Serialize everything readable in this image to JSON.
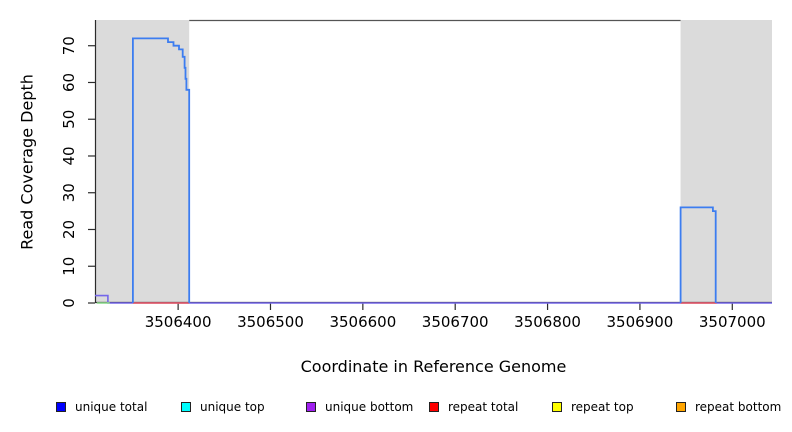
{
  "page": {
    "background": "#FFFFFF"
  },
  "chart_data": {
    "type": "line",
    "title": "",
    "xlabel": "Coordinate in Reference Genome",
    "ylabel": "Read Coverage Depth",
    "xlim": [
      3506310,
      3507043
    ],
    "ylim": [
      0,
      77
    ],
    "x_ticks": [
      3506400,
      3506500,
      3506600,
      3506700,
      3506800,
      3506900,
      3507000
    ],
    "y_ticks": [
      0,
      10,
      20,
      30,
      40,
      50,
      60,
      70
    ],
    "grid": false,
    "legend_position": "bottom",
    "colors": {
      "region_gray": "#DBDBDB",
      "axis": "#2b2b2b",
      "box_top_line": "#555555",
      "peak_blue": "#3C7DF0",
      "baseline_violet": "#7466EA",
      "segment_red": "#F25C5C",
      "segment_green": "#8EDC8E"
    },
    "shaded_regions": [
      {
        "x1": 3506310,
        "x2": 3506412
      },
      {
        "x1": 3506944,
        "x2": 3507043
      }
    ],
    "top_gap_line": {
      "x1": 3506412,
      "x2": 3506944
    },
    "series": [
      {
        "name": "unique-bottom-baseline",
        "color": "#7466EA",
        "width": 1.6,
        "paths": [
          [
            [
              3506310,
              2
            ],
            [
              3506324,
              2
            ],
            [
              3506324,
              0
            ],
            [
              3507043,
              0
            ]
          ]
        ]
      },
      {
        "name": "green-baseline-segment",
        "color": "#8EDC8E",
        "width": 1.6,
        "paths": [
          [
            [
              3506312,
              0
            ],
            [
              3506326,
              0
            ]
          ]
        ]
      },
      {
        "name": "repeat-total",
        "color": "#F25C5C",
        "width": 1.4,
        "paths": [
          [
            [
              3506351,
              0
            ],
            [
              3506412,
              0
            ]
          ],
          [
            [
              3506944,
              0
            ],
            [
              3506983,
              0
            ]
          ]
        ]
      },
      {
        "name": "unique-total",
        "color": "#3C7DF0",
        "width": 1.8,
        "paths": [
          [
            [
              3506351,
              0
            ],
            [
              3506351,
              72
            ],
            [
              3506389,
              72
            ],
            [
              3506389,
              71
            ],
            [
              3506395,
              71
            ],
            [
              3506395,
              70
            ],
            [
              3506401,
              70
            ],
            [
              3506401,
              69
            ],
            [
              3506405,
              69
            ],
            [
              3506405,
              67
            ],
            [
              3506407,
              67
            ],
            [
              3506407,
              64
            ],
            [
              3506408,
              64
            ],
            [
              3506408,
              61
            ],
            [
              3506409,
              61
            ],
            [
              3506409,
              58
            ],
            [
              3506412,
              58
            ],
            [
              3506412,
              0
            ]
          ],
          [
            [
              3506944,
              0
            ],
            [
              3506944,
              26
            ],
            [
              3506979,
              26
            ],
            [
              3506979,
              25
            ],
            [
              3506982,
              25
            ],
            [
              3506982,
              0
            ]
          ]
        ]
      }
    ]
  },
  "legend": {
    "items": [
      {
        "label": "unique total",
        "color": "#0000FF"
      },
      {
        "label": "unique top",
        "color": "#00FFFF"
      },
      {
        "label": "unique bottom",
        "color": "#A020F0"
      },
      {
        "label": "repeat total",
        "color": "#FF0000"
      },
      {
        "label": "repeat top",
        "color": "#FFFF00"
      },
      {
        "label": "repeat bottom",
        "color": "#FFA500"
      }
    ]
  }
}
